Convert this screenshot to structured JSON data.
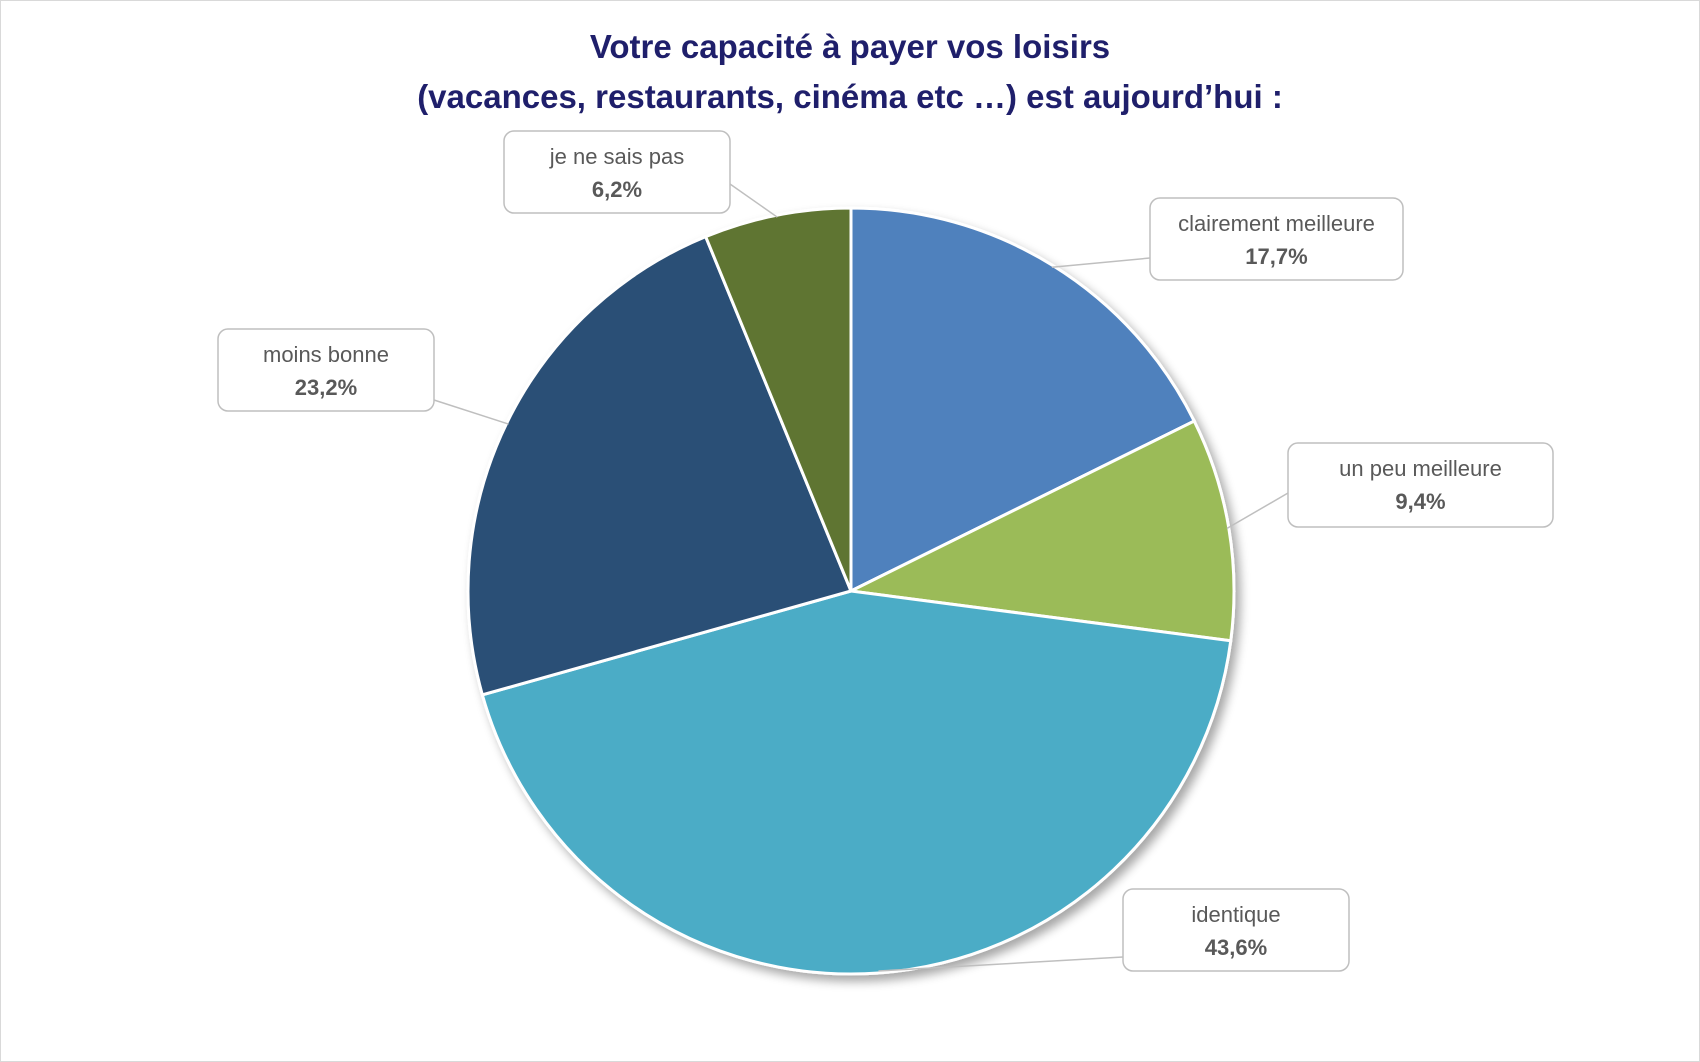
{
  "chart_data": {
    "type": "pie",
    "title_lines": [
      "Votre capacité à payer vos loisirs",
      "(vacances, restaurants, cinéma etc …) est aujourd’hui :"
    ],
    "start_angle_deg": 0,
    "direction": "clockwise",
    "slices": [
      {
        "label": "clairement meilleure",
        "value": 17.7,
        "display": "17,7%",
        "color": "#4f81bd"
      },
      {
        "label": "un peu meilleure",
        "value": 9.4,
        "display": "9,4%",
        "color": "#9bbb59"
      },
      {
        "label": "identique",
        "value": 43.6,
        "display": "43,6%",
        "color": "#4bacc6"
      },
      {
        "label": "moins bonne",
        "value": 23.2,
        "display": "23,2%",
        "color": "#2c4f76"
      },
      {
        "label": "je ne sais pas",
        "value": 6.2,
        "display": "6,2%",
        "color": "#5f7530"
      }
    ],
    "legend": "none",
    "data_labels": "callouts"
  }
}
